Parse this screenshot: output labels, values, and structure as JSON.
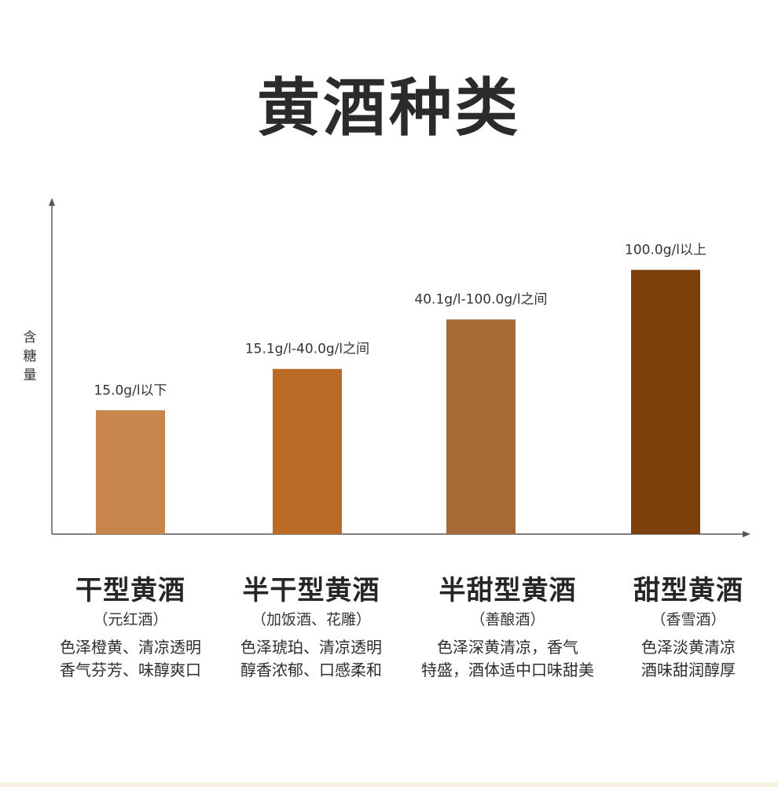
{
  "title": "黄酒种类",
  "ylabel_chars": [
    "含",
    "糖",
    "量"
  ],
  "chart_data": {
    "type": "bar",
    "title": "",
    "xlabel": "",
    "ylabel": "含糖量",
    "categories": [
      "干型黄酒",
      "半干型黄酒",
      "半甜型黄酒",
      "甜型黄酒"
    ],
    "values": [
      15,
      40,
      70,
      100
    ],
    "data_labels": [
      "15.0g/l以下",
      "15.1g/l-40.0g/l之间",
      "40.1g/l-100.0g/l之间",
      "100.0g/l以上"
    ],
    "colors": [
      "#c8864c",
      "#ba6c26",
      "#a56a35",
      "#7d400c"
    ],
    "ylim": [
      -60,
      135
    ],
    "grid": false,
    "legend": "none"
  },
  "categories": [
    {
      "name": "干型黄酒",
      "alt": "（元红酒）",
      "desc": [
        "色泽橙黄、清凉透明",
        "香气芬芳、味醇爽口"
      ]
    },
    {
      "name": "半干型黄酒",
      "alt": "（加饭酒、花雕）",
      "desc": [
        "色泽琥珀、清凉透明",
        "醇香浓郁、口感柔和"
      ]
    },
    {
      "name": "半甜型黄酒",
      "alt": "（善酿酒）",
      "desc": [
        "色泽深黄清凉，香气",
        "特盛，酒体适中口味甜美"
      ]
    },
    {
      "name": "甜型黄酒",
      "alt": "（香雪酒）",
      "desc": [
        "色泽淡黄清凉",
        "酒味甜润醇厚"
      ]
    }
  ]
}
